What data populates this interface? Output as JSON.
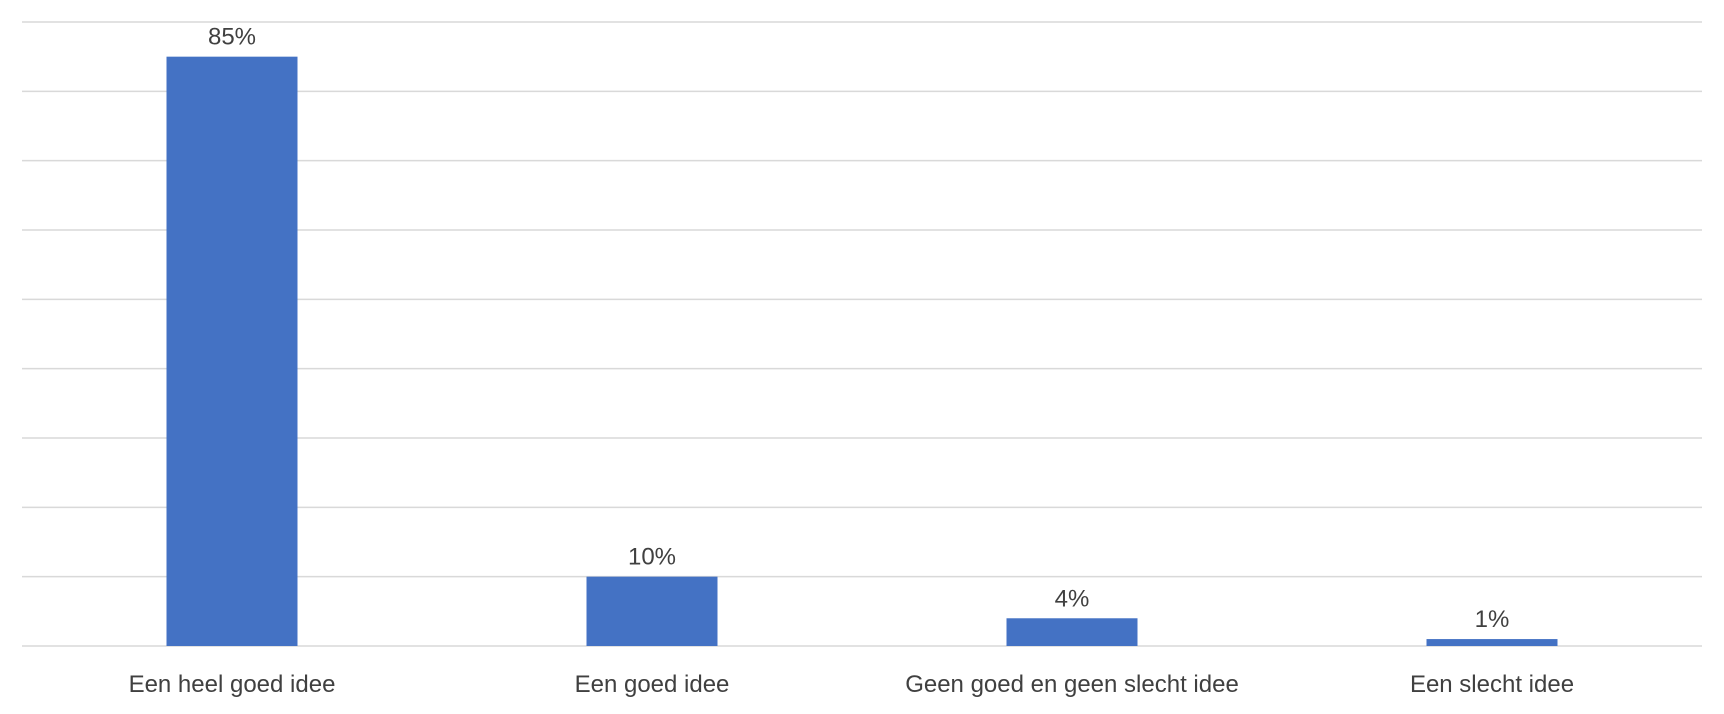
{
  "chart_data": {
    "type": "bar",
    "categories": [
      "Een heel goed idee",
      "Een goed idee",
      "Geen goed en geen slecht idee",
      "Een slecht idee"
    ],
    "values": [
      85,
      10,
      4,
      1
    ],
    "data_labels": [
      "85%",
      "10%",
      "4%",
      "1%"
    ],
    "title": "",
    "xlabel": "",
    "ylabel": "",
    "ylim": [
      0,
      90
    ],
    "gridlines": true,
    "y_tick_labels_visible": false,
    "legend": "none",
    "bar_color": "#4472c4"
  }
}
